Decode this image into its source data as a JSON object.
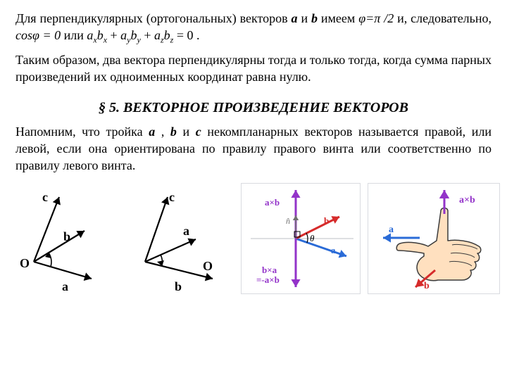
{
  "para1_frag1": "Для перпендикулярных (ортогональных) векторов ",
  "para1_frag2": " и ",
  "para1_frag3": " имеем ",
  "para1_frag4": "φ=π /2",
  "para1_frag5": " и, следовательно, ",
  "para1_frag6": "cosφ = 0",
  "para1_frag7": " или ",
  "para1_frag8": " + ",
  "para1_frag9": " = 0 .",
  "vec_a": "a",
  "vec_b": "b",
  "vec_c": "c",
  "coef_a": "a",
  "coef_b": "b",
  "sub_x": "x",
  "sub_y": "y",
  "sub_z": "z",
  "para2": "Таким образом, два вектора перпендикулярны тогда и только тогда, когда сумма парных произведений их одноименных координат равна нулю.",
  "section_title": "§ 5. ВЕКТОРНОЕ ПРОИЗВЕДЕНИЕ ВЕКТОРОВ",
  "para3_frag1": "Напомним, что тройка ",
  "para3_frag2": " , ",
  "para3_frag3": " и ",
  "para3_frag4": " некомпланарных векторов называется правой, или левой, если она ориентирована по правилу правого винта или соответственно по правилу левого винта.",
  "fig1": {
    "labels": {
      "O": "O",
      "a": "a",
      "b": "b",
      "c": "c"
    },
    "stroke": "#000000",
    "stroke_width": 2.2,
    "arc_width": 1.6,
    "font_size": 18,
    "font_weight": "bold"
  },
  "fig2": {
    "labels": {
      "O": "O",
      "a": "a",
      "b": "b",
      "c": "c"
    },
    "stroke": "#000000",
    "stroke_width": 2.2,
    "arc_width": 1.6,
    "font_size": 18,
    "font_weight": "bold"
  },
  "fig3": {
    "border_color": "#d9dbe0",
    "bg": "#ffffff",
    "axis_color": "#bdbfc4",
    "axis_width": 1,
    "colors": {
      "a": "#2a6bd7",
      "b": "#d62b2b",
      "cross_up": "#9333c9",
      "cross_down": "#9333c9",
      "normal": "#707070"
    },
    "labels": {
      "a": "a",
      "b": "b",
      "ab": "a×b",
      "ba1": "b×a",
      "ba2": "=-a×b",
      "n": "n̂",
      "theta": "θ"
    },
    "font_size": 13,
    "font_weight": "bold",
    "line_width": 3
  },
  "fig4": {
    "border_color": "#d9dbe0",
    "bg": "#ffffff",
    "colors": {
      "a": "#2a6bd7",
      "b": "#d62b2b",
      "ab": "#9333c9",
      "hand_fill": "#ffe0bf",
      "hand_stroke": "#3b3b3b"
    },
    "labels": {
      "a": "a",
      "b": "b",
      "ab": "a×b"
    },
    "font_size": 14,
    "font_weight": "bold",
    "line_width": 3,
    "hand_stroke_width": 1.5
  }
}
